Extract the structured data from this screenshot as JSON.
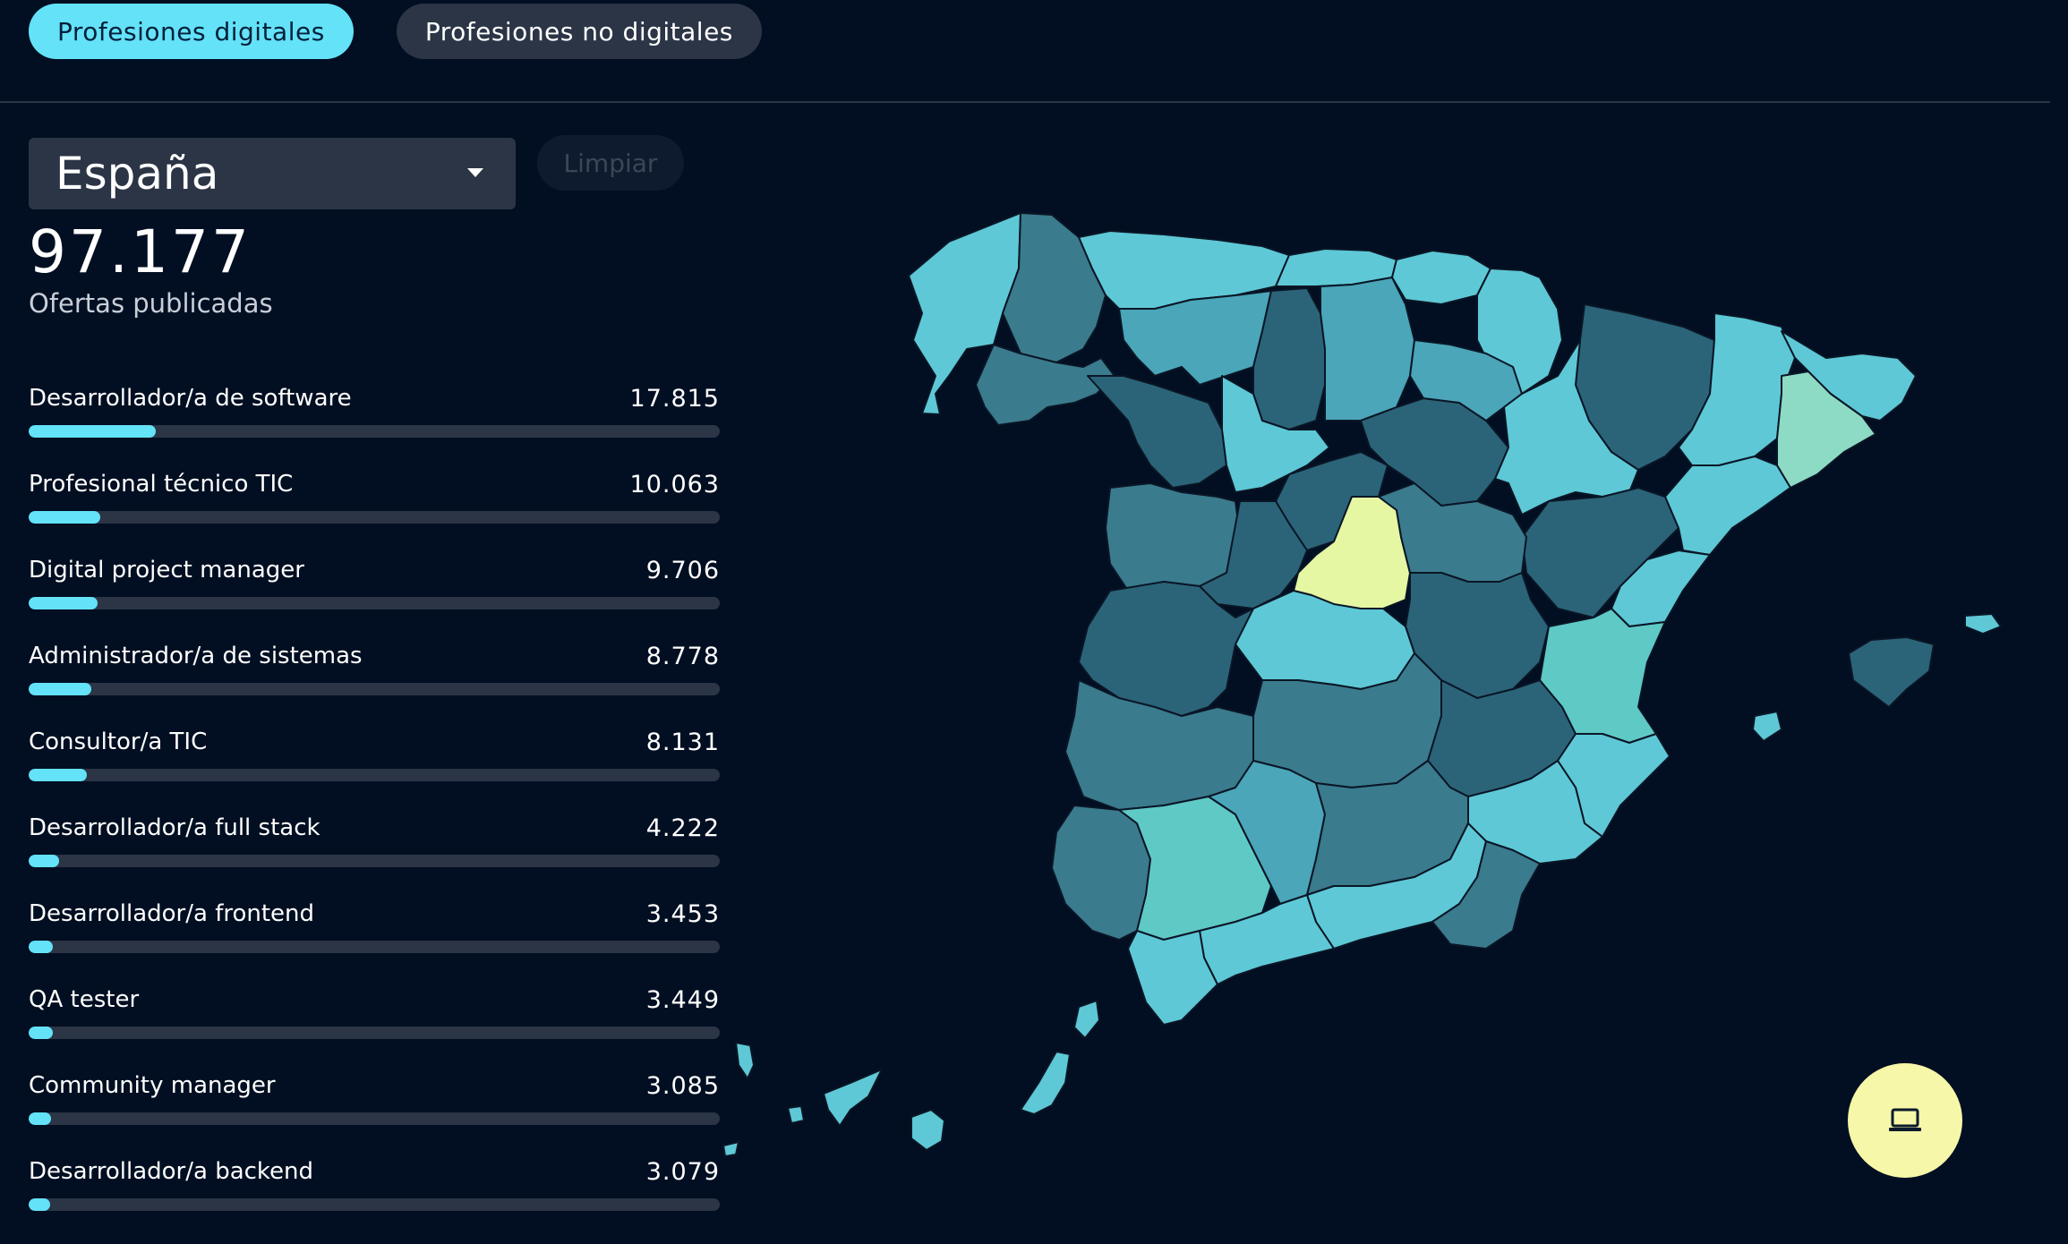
{
  "tabs": [
    {
      "label": "Profesiones digitales",
      "active": true
    },
    {
      "label": "Profesiones no digitales",
      "active": false
    }
  ],
  "filter": {
    "selected": "España",
    "clear_label": "Limpiar"
  },
  "summary": {
    "total": "97.177",
    "label": "Ofertas publicadas"
  },
  "professions": [
    {
      "name": "Desarrollador/a de software",
      "value": "17.815",
      "count": 17815
    },
    {
      "name": "Profesional técnico TIC",
      "value": "10.063",
      "count": 10063
    },
    {
      "name": "Digital project manager",
      "value": "9.706",
      "count": 9706
    },
    {
      "name": "Administrador/a de sistemas",
      "value": "8.778",
      "count": 8778
    },
    {
      "name": "Consultor/a TIC",
      "value": "8.131",
      "count": 8131
    },
    {
      "name": "Desarrollador/a full stack",
      "value": "4.222",
      "count": 4222
    },
    {
      "name": "Desarrollador/a frontend",
      "value": "3.453",
      "count": 3453
    },
    {
      "name": "QA tester",
      "value": "3.449",
      "count": 3449
    },
    {
      "name": "Community manager",
      "value": "3.085",
      "count": 3085
    },
    {
      "name": "Desarrollador/a backend",
      "value": "3.079",
      "count": 3079
    }
  ],
  "bar_scale_max": 97177,
  "colors": {
    "accent": "#63e2f8",
    "background": "#020f22",
    "highlight": "#e6f7a3",
    "fab": "#f6f7a8"
  },
  "fab": {
    "icon": "laptop-icon"
  }
}
